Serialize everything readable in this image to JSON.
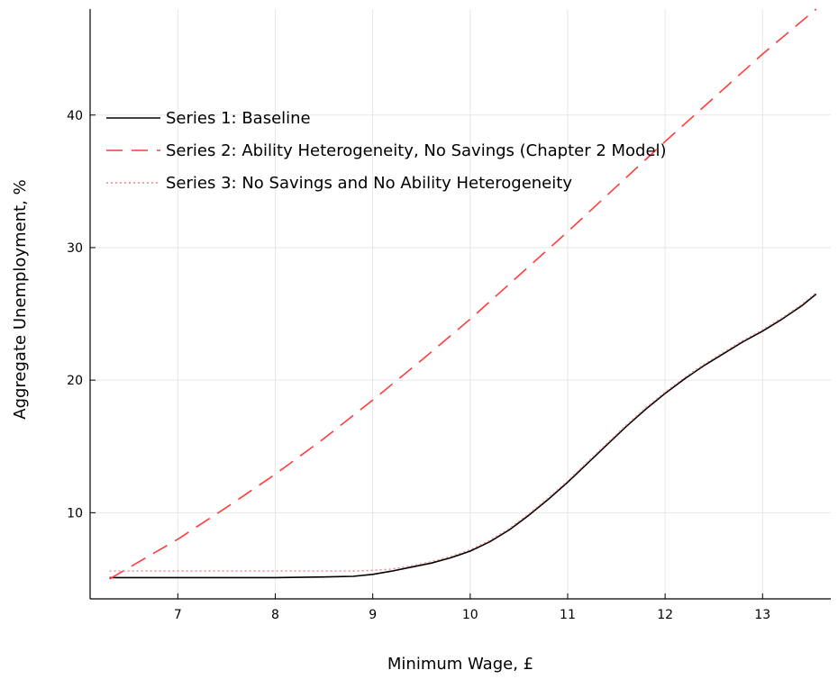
{
  "chart_data": {
    "type": "line",
    "title": "",
    "xlabel": "Minimum Wage, £",
    "ylabel": "Aggregate Unemployment, %",
    "xlim": [
      6.1,
      13.7
    ],
    "ylim": [
      3.5,
      48
    ],
    "xticks": [
      7,
      8,
      9,
      10,
      11,
      12,
      13
    ],
    "yticks": [
      10,
      20,
      30,
      40
    ],
    "grid": true,
    "legend_position": "top-left",
    "series": [
      {
        "name": "Series 1: Baseline",
        "color": "#000000",
        "style": "solid",
        "x": [
          6.3,
          7.0,
          8.0,
          8.5,
          8.8,
          9.0,
          9.2,
          9.4,
          9.6,
          9.8,
          10.0,
          10.2,
          10.4,
          10.6,
          10.8,
          11.0,
          11.2,
          11.4,
          11.6,
          11.8,
          12.0,
          12.2,
          12.4,
          12.6,
          12.8,
          13.0,
          13.2,
          13.4,
          13.55
        ],
        "y": [
          5.1,
          5.1,
          5.1,
          5.15,
          5.2,
          5.35,
          5.6,
          5.9,
          6.2,
          6.6,
          7.1,
          7.8,
          8.7,
          9.8,
          11.0,
          12.3,
          13.7,
          15.1,
          16.5,
          17.8,
          19.0,
          20.1,
          21.1,
          22.0,
          22.9,
          23.7,
          24.6,
          25.6,
          26.5
        ]
      },
      {
        "name": "Series 2: Ability Heterogeneity, No Savings (Chapter 2 Model)",
        "color": "#ff3b3b",
        "style": "dashed",
        "x": [
          6.3,
          7.0,
          7.5,
          8.0,
          8.5,
          9.0,
          9.5,
          10.0,
          10.5,
          11.0,
          11.5,
          12.0,
          12.5,
          13.0,
          13.55
        ],
        "y": [
          5.0,
          8.0,
          10.4,
          12.9,
          15.6,
          18.5,
          21.5,
          24.6,
          27.9,
          31.2,
          34.6,
          38.0,
          41.3,
          44.6,
          48.0
        ]
      },
      {
        "name": "Series 3: No Savings and No Ability Heterogeneity",
        "color": "#f08080",
        "style": "dotted",
        "x": [
          6.3,
          7.0,
          8.0,
          8.5,
          8.8,
          9.0,
          9.2,
          9.4,
          9.6,
          9.8,
          10.0,
          10.2,
          10.4,
          10.6,
          10.8,
          11.0,
          11.2,
          11.4,
          11.6,
          11.8,
          12.0,
          12.2,
          12.4,
          12.6,
          12.8,
          13.0,
          13.2,
          13.4,
          13.55
        ],
        "y": [
          5.6,
          5.6,
          5.6,
          5.6,
          5.6,
          5.65,
          5.75,
          6.0,
          6.3,
          6.7,
          7.2,
          7.9,
          8.8,
          9.9,
          11.1,
          12.4,
          13.8,
          15.2,
          16.6,
          17.9,
          19.1,
          20.2,
          21.2,
          22.1,
          23.0,
          23.8,
          24.7,
          25.7,
          26.6
        ]
      }
    ]
  }
}
